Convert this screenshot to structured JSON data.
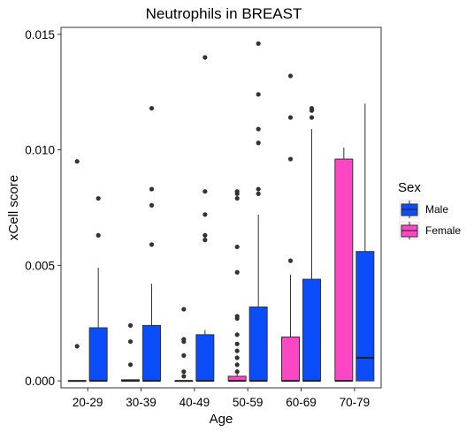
{
  "chart_data": {
    "type": "boxplot",
    "title": "Neutrophils in BREAST",
    "xlabel": "Age",
    "ylabel": "xCell score",
    "ylim": [
      -0.0003,
      0.0153
    ],
    "yticks": [
      0.0,
      0.005,
      0.01,
      0.015
    ],
    "ytick_labels": [
      "0.000",
      "0.005",
      "0.010",
      "0.015"
    ],
    "categories": [
      "20-29",
      "30-39",
      "40-49",
      "50-59",
      "60-69",
      "70-79"
    ],
    "legend": {
      "title": "Sex",
      "position": "right",
      "entries": [
        {
          "label": "Male",
          "color": "#0b4dfb"
        },
        {
          "label": "Female",
          "color": "#fc46c4"
        }
      ]
    },
    "series": [
      {
        "name": "Female",
        "color": "#fc46c4",
        "boxes": [
          {
            "category": "20-29",
            "min": 0,
            "q1": 0,
            "median": 0,
            "q3": 0,
            "max": 0,
            "outliers": [
              0.0015,
              0.0095
            ]
          },
          {
            "category": "30-39",
            "min": 0,
            "q1": 0,
            "median": 0,
            "q3": 5e-05,
            "max": 5e-05,
            "outliers": [
              0.0007,
              0.0017,
              0.0024
            ]
          },
          {
            "category": "40-49",
            "min": 0,
            "q1": 0,
            "median": 0,
            "q3": 0,
            "max": 0,
            "outliers": [
              0.0002,
              0.0004,
              0.0011,
              0.0017,
              0.0018,
              0.0031
            ]
          },
          {
            "category": "50-59",
            "min": 0,
            "q1": 0,
            "median": 0,
            "q3": 0.0002,
            "max": 0.0005,
            "outliers": [
              0.0004,
              0.0007,
              0.001,
              0.0013,
              0.0016,
              0.002,
              0.0027,
              0.0028,
              0.0047,
              0.0058,
              0.0079,
              0.0081,
              0.0082
            ]
          },
          {
            "category": "60-69",
            "min": 0,
            "q1": 0,
            "median": 0,
            "q3": 0.0019,
            "max": 0.0046,
            "outliers": [
              0.0052,
              0.0096,
              0.0114,
              0.0132
            ]
          },
          {
            "category": "70-79",
            "min": 0,
            "q1": 0,
            "median": 0,
            "q3": 0.0096,
            "max": 0.0101,
            "outliers": []
          }
        ]
      },
      {
        "name": "Male",
        "color": "#0b4dfb",
        "boxes": [
          {
            "category": "20-29",
            "min": 0,
            "q1": 0,
            "median": 0,
            "q3": 0.0023,
            "max": 0.0049,
            "outliers": [
              0.0063,
              0.0079
            ]
          },
          {
            "category": "30-39",
            "min": 0,
            "q1": 0,
            "median": 0,
            "q3": 0.0024,
            "max": 0.0042,
            "outliers": [
              0.0059,
              0.0076,
              0.0083,
              0.0118
            ]
          },
          {
            "category": "40-49",
            "min": 0,
            "q1": 0,
            "median": 0,
            "q3": 0.002,
            "max": 0.0022,
            "outliers": [
              0.0061,
              0.0063,
              0.0072,
              0.0082,
              0.014
            ]
          },
          {
            "category": "50-59",
            "min": 0,
            "q1": 0,
            "median": 0,
            "q3": 0.0032,
            "max": 0.0072,
            "outliers": [
              0.0081,
              0.0083,
              0.0103,
              0.0109,
              0.0124,
              0.0146
            ]
          },
          {
            "category": "60-69",
            "min": 0,
            "q1": 0,
            "median": 0,
            "q3": 0.0044,
            "max": 0.0109,
            "outliers": [
              0.0114,
              0.0117,
              0.0118
            ]
          },
          {
            "category": "70-79",
            "min": 0,
            "q1": 0,
            "median": 0.001,
            "q3": 0.0056,
            "max": 0.012,
            "outliers": []
          }
        ]
      }
    ]
  }
}
